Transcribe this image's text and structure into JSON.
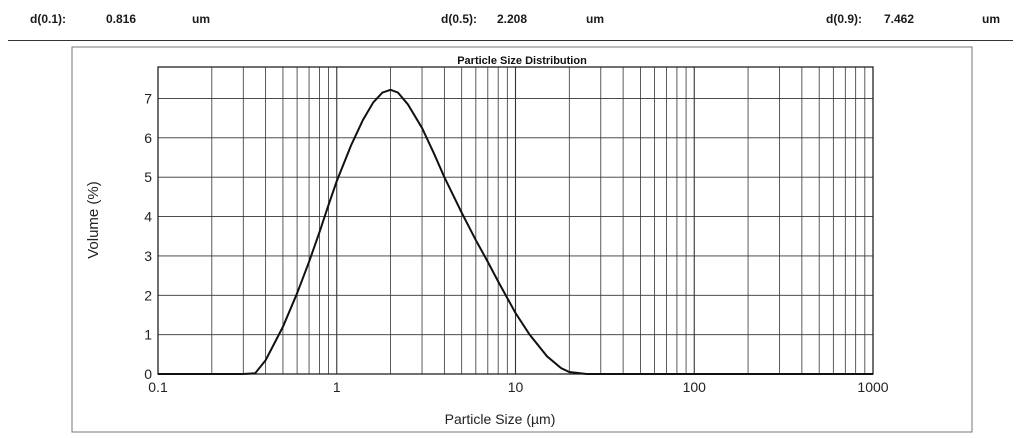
{
  "stats": [
    {
      "label": "d(0.1):",
      "value": "0.816",
      "unit": "um"
    },
    {
      "label": "d(0.5):",
      "value": "2.208",
      "unit": "um"
    },
    {
      "label": "d(0.9):",
      "value": "7.462",
      "unit": "um"
    }
  ],
  "chart_data": {
    "type": "line",
    "title": "Particle Size Distribution",
    "xlabel": "Particle Size (µm)",
    "ylabel": "Volume (%)",
    "x_scale": "log",
    "xlim": [
      0.1,
      1000
    ],
    "ylim": [
      0,
      7.8
    ],
    "x_ticks": [
      {
        "value": 0.1,
        "label": "0.1"
      },
      {
        "value": 1,
        "label": "1"
      },
      {
        "value": 10,
        "label": "10"
      },
      {
        "value": 100,
        "label": "100"
      },
      {
        "value": 1000,
        "label": "1000"
      }
    ],
    "y_ticks": [
      0,
      1,
      2,
      3,
      4,
      5,
      6,
      7
    ],
    "grid": true,
    "legend": "none",
    "line_color": "#111111",
    "series": [
      {
        "x": [
          0.1,
          0.2,
          0.3,
          0.35,
          0.4,
          0.5,
          0.6,
          0.7,
          0.8,
          0.9,
          1.0,
          1.2,
          1.4,
          1.6,
          1.8,
          2.0,
          2.2,
          2.5,
          3.0,
          3.5,
          4.0,
          5.0,
          6.0,
          7.0,
          8.0,
          10,
          12,
          15,
          18,
          20,
          25,
          28,
          35,
          100,
          1000
        ],
        "y": [
          0,
          0,
          0,
          0.02,
          0.35,
          1.2,
          2.05,
          2.85,
          3.6,
          4.3,
          4.9,
          5.8,
          6.45,
          6.9,
          7.15,
          7.22,
          7.15,
          6.85,
          6.25,
          5.6,
          5.0,
          4.1,
          3.4,
          2.85,
          2.35,
          1.55,
          1.0,
          0.45,
          0.15,
          0.05,
          0.0,
          0,
          0,
          0,
          0
        ]
      }
    ]
  }
}
